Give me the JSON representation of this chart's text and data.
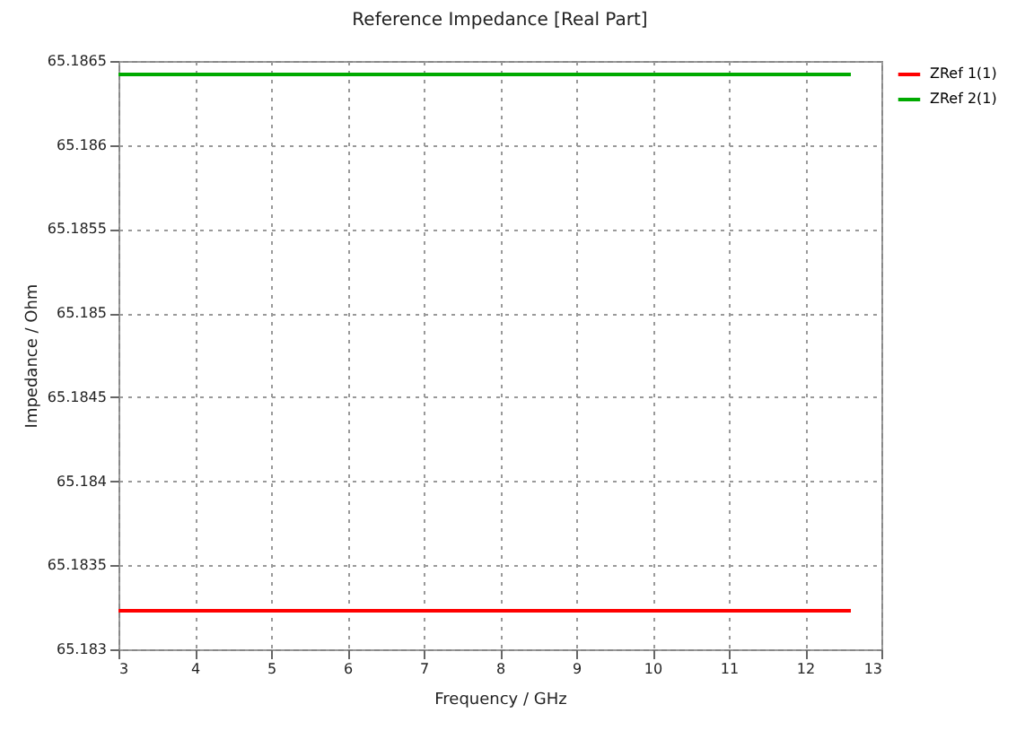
{
  "chart_data": {
    "type": "line",
    "title": "Reference Impedance [Real Part]",
    "xlabel": "Frequency / GHz",
    "ylabel": "Impedance / Ohm",
    "x": [
      3,
      12.6
    ],
    "series": [
      {
        "name": "ZRef 1(1)",
        "color": "#ff0000",
        "values": [
          65.18323,
          65.18323
        ]
      },
      {
        "name": "ZRef 2(1)",
        "color": "#00aa00",
        "values": [
          65.18642,
          65.18642
        ]
      }
    ],
    "xlim": [
      3,
      13
    ],
    "xticks": [
      3,
      4,
      5,
      6,
      7,
      8,
      9,
      10,
      11,
      12,
      13
    ],
    "ylim": [
      65.183,
      65.1865
    ],
    "yticks": [
      65.183,
      65.1835,
      65.184,
      65.1845,
      65.185,
      65.1855,
      65.186,
      65.1865
    ],
    "grid": true,
    "legend": "top right",
    "line_style": "solid",
    "marker": "none"
  }
}
